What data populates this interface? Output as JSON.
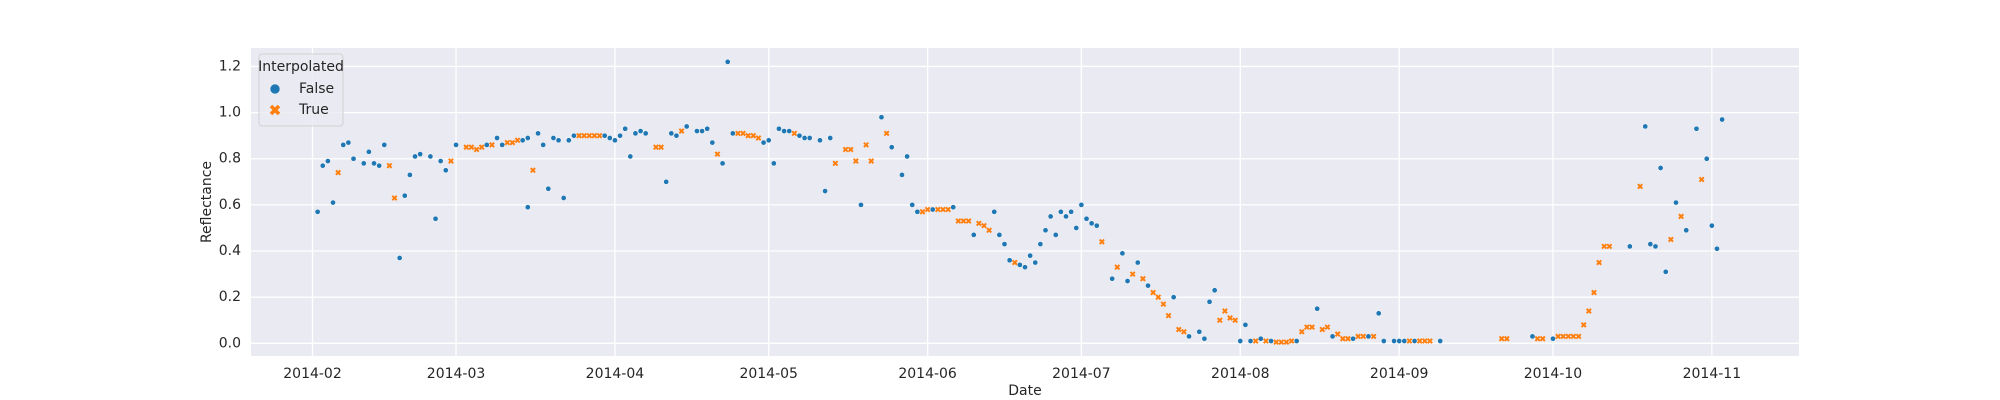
{
  "chart_data": {
    "type": "scatter",
    "x_label": "Date",
    "y_label": "Reflectance",
    "legend_title": "Interpolated",
    "legend": "upper-left",
    "grid": true,
    "xlim": [
      20,
      322
    ],
    "xticks": [
      {
        "value": 32,
        "label": "2014-02"
      },
      {
        "value": 60,
        "label": "2014-03"
      },
      {
        "value": 91,
        "label": "2014-04"
      },
      {
        "value": 121,
        "label": "2014-05"
      },
      {
        "value": 152,
        "label": "2014-06"
      },
      {
        "value": 182,
        "label": "2014-07"
      },
      {
        "value": 213,
        "label": "2014-08"
      },
      {
        "value": 244,
        "label": "2014-09"
      },
      {
        "value": 274,
        "label": "2014-10"
      },
      {
        "value": 305,
        "label": "2014-11"
      }
    ],
    "ylim": [
      -0.055,
      1.28
    ],
    "yticks": [
      {
        "value": 0,
        "label": "0.0"
      },
      0.2,
      0.4,
      0.6,
      0.8,
      {
        "value": 1,
        "label": "1.0"
      },
      1.2
    ],
    "series": [
      {
        "name": "False",
        "color": "#1f77b4",
        "marker": "circle",
        "x": [
          33,
          34,
          35,
          36,
          38,
          39,
          40,
          42,
          43,
          44,
          45,
          46,
          49,
          50,
          51,
          52,
          53,
          55,
          56,
          57,
          58,
          60,
          66,
          68,
          69,
          73,
          74,
          74,
          76,
          77,
          78,
          79,
          80,
          81,
          82,
          83,
          89,
          90,
          91,
          92,
          93,
          94,
          95,
          96,
          97,
          101,
          102,
          103,
          105,
          107,
          108,
          109,
          110,
          112,
          113,
          114,
          120,
          121,
          122,
          123,
          124,
          125,
          127,
          128,
          129,
          131,
          132,
          133,
          139,
          143,
          145,
          147,
          148,
          149,
          150,
          153,
          157,
          161,
          165,
          166,
          167,
          168,
          170,
          171,
          172,
          173,
          174,
          175,
          176,
          177,
          178,
          179,
          180,
          181,
          182,
          183,
          184,
          185,
          188,
          190,
          191,
          193,
          195,
          200,
          203,
          205,
          206,
          207,
          208,
          213,
          214,
          215,
          217,
          219,
          224,
          228,
          231,
          235,
          238,
          240,
          241,
          243,
          244,
          245,
          247,
          252,
          270,
          274,
          289,
          292,
          293,
          294,
          295,
          296,
          298,
          300,
          302,
          304,
          305,
          306,
          307
        ],
        "values": [
          0.57,
          0.77,
          0.79,
          0.61,
          0.86,
          0.87,
          0.8,
          0.78,
          0.83,
          0.78,
          0.77,
          0.86,
          0.37,
          0.64,
          0.73,
          0.81,
          0.82,
          0.81,
          0.54,
          0.79,
          0.75,
          0.86,
          0.86,
          0.89,
          0.86,
          0.88,
          0.89,
          0.59,
          0.91,
          0.86,
          0.67,
          0.89,
          0.88,
          0.63,
          0.88,
          0.9,
          0.9,
          0.89,
          0.88,
          0.9,
          0.93,
          0.81,
          0.91,
          0.92,
          0.91,
          0.7,
          0.91,
          0.9,
          0.94,
          0.92,
          0.92,
          0.93,
          0.87,
          0.78,
          1.22,
          0.91,
          0.87,
          0.88,
          0.78,
          0.93,
          0.92,
          0.92,
          0.9,
          0.89,
          0.89,
          0.88,
          0.66,
          0.89,
          0.6,
          0.98,
          0.85,
          0.73,
          0.81,
          0.6,
          0.57,
          0.58,
          0.59,
          0.47,
          0.57,
          0.47,
          0.43,
          0.36,
          0.34,
          0.33,
          0.38,
          0.35,
          0.43,
          0.49,
          0.55,
          0.47,
          0.57,
          0.55,
          0.57,
          0.5,
          0.6,
          0.54,
          0.52,
          0.51,
          0.28,
          0.39,
          0.27,
          0.35,
          0.25,
          0.2,
          0.03,
          0.05,
          0.02,
          0.18,
          0.23,
          0.01,
          0.08,
          0.01,
          0.02,
          0.01,
          0.01,
          0.15,
          0.03,
          0.02,
          0.03,
          0.13,
          0.01,
          0.01,
          0.01,
          0.01,
          0.01,
          0.01,
          0.03,
          0.02,
          0.42,
          0.94,
          0.43,
          0.42,
          0.76,
          0.31,
          0.61,
          0.49,
          0.93,
          0.8,
          0.51,
          0.41,
          0.97
        ]
      },
      {
        "name": "True",
        "color": "#ff7f0e",
        "marker": "x",
        "x": [
          37,
          47,
          48,
          59,
          62,
          63,
          64,
          65,
          67,
          70,
          71,
          72,
          75,
          84,
          85,
          86,
          87,
          88,
          99,
          100,
          104,
          111,
          115,
          116,
          117,
          118,
          119,
          126,
          134,
          136,
          137,
          138,
          140,
          141,
          144,
          151,
          152,
          154,
          155,
          156,
          158,
          159,
          160,
          162,
          163,
          164,
          169,
          186,
          189,
          192,
          194,
          196,
          197,
          198,
          199,
          201,
          202,
          209,
          210,
          211,
          212,
          216,
          218,
          220,
          221,
          222,
          223,
          225,
          226,
          227,
          229,
          230,
          232,
          233,
          234,
          236,
          237,
          239,
          246,
          248,
          249,
          250,
          264,
          265,
          271,
          272,
          275,
          276,
          277,
          278,
          279,
          280,
          281,
          282,
          283,
          284,
          285,
          291,
          297,
          299,
          303
        ],
        "values": [
          0.74,
          0.77,
          0.63,
          0.79,
          0.85,
          0.85,
          0.84,
          0.85,
          0.86,
          0.87,
          0.87,
          0.88,
          0.75,
          0.9,
          0.9,
          0.9,
          0.9,
          0.9,
          0.85,
          0.85,
          0.92,
          0.82,
          0.91,
          0.91,
          0.9,
          0.9,
          0.89,
          0.91,
          0.78,
          0.84,
          0.84,
          0.79,
          0.86,
          0.79,
          0.91,
          0.57,
          0.58,
          0.58,
          0.58,
          0.58,
          0.53,
          0.53,
          0.53,
          0.52,
          0.51,
          0.49,
          0.35,
          0.44,
          0.33,
          0.3,
          0.28,
          0.22,
          0.2,
          0.17,
          0.12,
          0.06,
          0.05,
          0.1,
          0.14,
          0.11,
          0.1,
          0.01,
          0.01,
          0.005,
          0.005,
          0.005,
          0.01,
          0.05,
          0.07,
          0.07,
          0.06,
          0.07,
          0.04,
          0.02,
          0.02,
          0.03,
          0.03,
          0.03,
          0.01,
          0.01,
          0.01,
          0.01,
          0.02,
          0.02,
          0.02,
          0.02,
          0.03,
          0.03,
          0.03,
          0.03,
          0.03,
          0.08,
          0.14,
          0.22,
          0.35,
          0.42,
          0.42,
          0.68,
          0.45,
          0.55,
          0.71
        ]
      }
    ]
  }
}
